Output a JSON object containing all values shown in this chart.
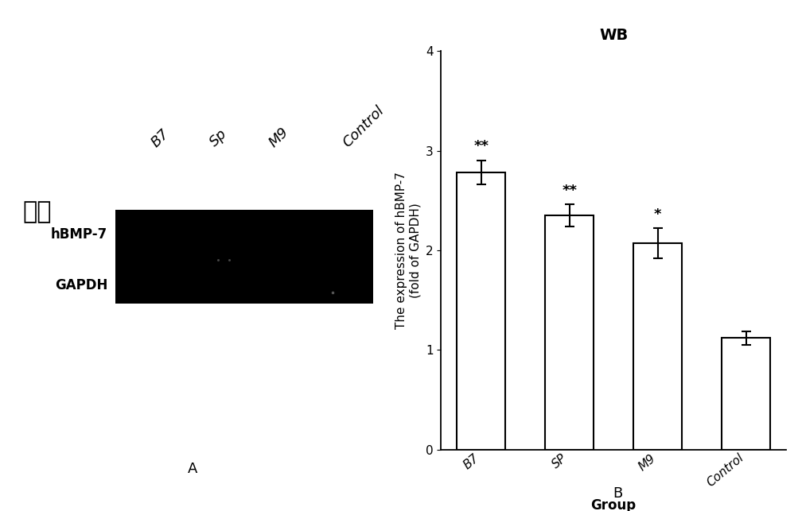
{
  "panel_A": {
    "label": "A",
    "chinese_label": "胞内",
    "row_labels": [
      "hBMP-7",
      "GAPDH"
    ],
    "col_labels": [
      "B7",
      "Sp",
      "M9",
      "Control"
    ],
    "blot_color": "#000000"
  },
  "panel_B": {
    "label": "B",
    "title": "WB",
    "xlabel": "Group",
    "ylabel": "The expression of hBMP-7\n(fold of GAPDH)",
    "categories": [
      "B7",
      "SP",
      "M9",
      "Control"
    ],
    "values": [
      2.78,
      2.35,
      2.07,
      1.12
    ],
    "errors": [
      0.12,
      0.11,
      0.15,
      0.07
    ],
    "significance": [
      "**",
      "**",
      "*",
      ""
    ],
    "bar_color": "#ffffff",
    "bar_edgecolor": "#000000",
    "bar_linewidth": 1.5,
    "errorbar_color": "#000000",
    "errorbar_linewidth": 1.5,
    "errorbar_capsize": 4,
    "ylim": [
      0,
      4
    ],
    "yticks": [
      0,
      1,
      2,
      3,
      4
    ],
    "title_fontsize": 14,
    "label_fontsize": 12,
    "tick_fontsize": 11,
    "sig_fontsize": 13,
    "bar_width": 0.55
  }
}
